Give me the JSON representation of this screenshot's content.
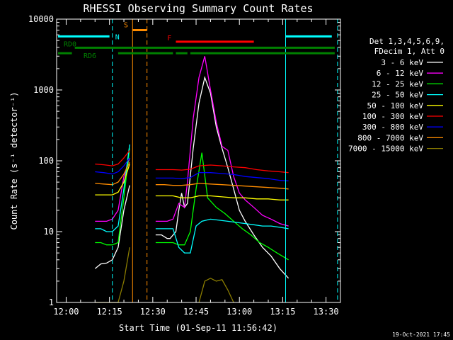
{
  "chart_data": {
    "type": "line",
    "title": "RHESSI Observing Summary Count Rates",
    "xlabel": "Start Time (01-Sep-11 11:56:42)",
    "ylabel": "Count Rate (s⁻¹ detector⁻¹)",
    "y_scale": "log",
    "ylim": [
      1,
      10000
    ],
    "x_ticks": [
      "12:00",
      "12:15",
      "12:30",
      "12:45",
      "13:00",
      "13:15",
      "13:30"
    ],
    "y_ticks": [
      "1",
      "10",
      "100",
      "1000",
      "10000"
    ],
    "legend_placement": "right",
    "legend_header": [
      "Det 1,3,4,5,6,9,",
      "FDecim 1, Att 0"
    ],
    "timestamp": "19-Oct-2021 17:45",
    "series": [
      {
        "name": "3 - 6 keV",
        "color": "#ffffff",
        "points": [
          [
            "12:10",
            3
          ],
          [
            "12:12",
            3.5
          ],
          [
            "12:14",
            3.6
          ],
          [
            "12:16",
            4
          ],
          [
            "12:18",
            6
          ],
          [
            "12:20",
            20
          ],
          [
            "12:22",
            45
          ],
          [
            "12:29",
            null
          ],
          [
            "12:31",
            9
          ],
          [
            "12:33",
            9
          ],
          [
            "12:35",
            8
          ],
          [
            "12:36",
            8
          ],
          [
            "12:38",
            10
          ],
          [
            "12:39",
            20
          ],
          [
            "12:40",
            35
          ],
          [
            "12:41",
            22
          ],
          [
            "12:42",
            25
          ],
          [
            "12:44",
            150
          ],
          [
            "12:46",
            650
          ],
          [
            "12:48",
            1500
          ],
          [
            "12:50",
            900
          ],
          [
            "12:52",
            300
          ],
          [
            "12:54",
            150
          ],
          [
            "12:56",
            80
          ],
          [
            "12:58",
            40
          ],
          [
            "13:00",
            20
          ],
          [
            "13:02",
            14
          ],
          [
            "13:05",
            9
          ],
          [
            "13:08",
            6
          ],
          [
            "13:11",
            4.5
          ],
          [
            "13:14",
            3
          ],
          [
            "13:17",
            2.2
          ]
        ]
      },
      {
        "name": "6 - 12 keV",
        "color": "#ff00ff",
        "points": [
          [
            "12:10",
            14
          ],
          [
            "12:12",
            14
          ],
          [
            "12:14",
            14
          ],
          [
            "12:16",
            15
          ],
          [
            "12:18",
            20
          ],
          [
            "12:20",
            60
          ],
          [
            "12:22",
            110
          ],
          [
            "12:29",
            null
          ],
          [
            "12:31",
            14
          ],
          [
            "12:33",
            14
          ],
          [
            "12:35",
            14
          ],
          [
            "12:37",
            15
          ],
          [
            "12:39",
            25
          ],
          [
            "12:41",
            22
          ],
          [
            "12:42",
            50
          ],
          [
            "12:44",
            400
          ],
          [
            "12:46",
            1500
          ],
          [
            "12:48",
            3000
          ],
          [
            "12:50",
            1000
          ],
          [
            "12:52",
            350
          ],
          [
            "12:54",
            160
          ],
          [
            "12:56",
            140
          ],
          [
            "12:58",
            60
          ],
          [
            "13:00",
            35
          ],
          [
            "13:02",
            28
          ],
          [
            "13:05",
            22
          ],
          [
            "13:08",
            17
          ],
          [
            "13:11",
            15
          ],
          [
            "13:14",
            13
          ],
          [
            "13:17",
            12
          ]
        ]
      },
      {
        "name": "12 - 25 keV",
        "color": "#00ff00",
        "points": [
          [
            "12:10",
            7
          ],
          [
            "12:12",
            7
          ],
          [
            "12:14",
            6.5
          ],
          [
            "12:16",
            6.5
          ],
          [
            "12:18",
            7
          ],
          [
            "12:20",
            30
          ],
          [
            "12:22",
            150
          ],
          [
            "12:29",
            null
          ],
          [
            "12:31",
            7
          ],
          [
            "12:33",
            7
          ],
          [
            "12:35",
            7
          ],
          [
            "12:37",
            7
          ],
          [
            "12:39",
            6.5
          ],
          [
            "12:41",
            6.5
          ],
          [
            "12:43",
            10
          ],
          [
            "12:45",
            40
          ],
          [
            "12:47",
            130
          ],
          [
            "12:49",
            30
          ],
          [
            "12:52",
            22
          ],
          [
            "12:55",
            18
          ],
          [
            "12:58",
            14
          ],
          [
            "13:01",
            11
          ],
          [
            "13:04",
            9
          ],
          [
            "13:07",
            7
          ],
          [
            "13:10",
            6
          ],
          [
            "13:13",
            5
          ],
          [
            "13:17",
            4
          ]
        ]
      },
      {
        "name": "25 - 50 keV",
        "color": "#00ffff",
        "points": [
          [
            "12:10",
            11
          ],
          [
            "12:12",
            11
          ],
          [
            "12:14",
            10
          ],
          [
            "12:16",
            10
          ],
          [
            "12:18",
            12
          ],
          [
            "12:20",
            40
          ],
          [
            "12:22",
            170
          ],
          [
            "12:29",
            null
          ],
          [
            "12:31",
            11
          ],
          [
            "12:33",
            11
          ],
          [
            "12:35",
            11
          ],
          [
            "12:37",
            11
          ],
          [
            "12:39",
            6
          ],
          [
            "12:41",
            5
          ],
          [
            "12:43",
            5
          ],
          [
            "12:45",
            12
          ],
          [
            "12:47",
            14
          ],
          [
            "12:50",
            15
          ],
          [
            "12:53",
            14.5
          ],
          [
            "12:56",
            14
          ],
          [
            "12:59",
            13.5
          ],
          [
            "13:02",
            13
          ],
          [
            "13:05",
            12.5
          ],
          [
            "13:08",
            12
          ],
          [
            "13:11",
            12
          ],
          [
            "13:14",
            11.5
          ],
          [
            "13:17",
            11
          ]
        ]
      },
      {
        "name": "50 - 100 keV",
        "color": "#ffff00",
        "points": [
          [
            "12:10",
            33
          ],
          [
            "12:13",
            33
          ],
          [
            "12:16",
            33
          ],
          [
            "12:18",
            36
          ],
          [
            "12:20",
            50
          ],
          [
            "12:22",
            90
          ],
          [
            "12:29",
            null
          ],
          [
            "12:31",
            32
          ],
          [
            "12:34",
            32
          ],
          [
            "12:37",
            32
          ],
          [
            "12:40",
            30
          ],
          [
            "12:43",
            30
          ],
          [
            "12:46",
            32
          ],
          [
            "12:50",
            32
          ],
          [
            "12:54",
            31
          ],
          [
            "12:58",
            30
          ],
          [
            "13:02",
            30
          ],
          [
            "13:06",
            29
          ],
          [
            "13:10",
            29
          ],
          [
            "13:14",
            28
          ],
          [
            "13:17",
            28
          ]
        ]
      },
      {
        "name": "100 - 300 keV",
        "color": "#ff0000",
        "points": [
          [
            "12:10",
            90
          ],
          [
            "12:13",
            88
          ],
          [
            "12:16",
            85
          ],
          [
            "12:18",
            90
          ],
          [
            "12:20",
            110
          ],
          [
            "12:22",
            140
          ],
          [
            "12:29",
            null
          ],
          [
            "12:31",
            75
          ],
          [
            "12:34",
            75
          ],
          [
            "12:37",
            75
          ],
          [
            "12:40",
            74
          ],
          [
            "12:43",
            76
          ],
          [
            "12:46",
            85
          ],
          [
            "12:50",
            87
          ],
          [
            "12:54",
            85
          ],
          [
            "12:58",
            82
          ],
          [
            "13:02",
            80
          ],
          [
            "13:06",
            75
          ],
          [
            "13:10",
            72
          ],
          [
            "13:14",
            70
          ],
          [
            "13:17",
            68
          ]
        ]
      },
      {
        "name": "300 - 800 keV",
        "color": "#0000ff",
        "points": [
          [
            "12:10",
            70
          ],
          [
            "12:13",
            68
          ],
          [
            "12:16",
            65
          ],
          [
            "12:18",
            70
          ],
          [
            "12:20",
            85
          ],
          [
            "12:22",
            110
          ],
          [
            "12:29",
            null
          ],
          [
            "12:31",
            57
          ],
          [
            "12:34",
            57
          ],
          [
            "12:37",
            57
          ],
          [
            "12:40",
            56
          ],
          [
            "12:43",
            58
          ],
          [
            "12:46",
            68
          ],
          [
            "12:50",
            68
          ],
          [
            "12:54",
            66
          ],
          [
            "12:58",
            64
          ],
          [
            "13:02",
            60
          ],
          [
            "13:06",
            58
          ],
          [
            "13:10",
            56
          ],
          [
            "13:14",
            53
          ],
          [
            "13:17",
            52
          ]
        ]
      },
      {
        "name": "800 - 7000 keV",
        "color": "#ff8c00",
        "points": [
          [
            "12:10",
            48
          ],
          [
            "12:13",
            47
          ],
          [
            "12:16",
            46
          ],
          [
            "12:18",
            50
          ],
          [
            "12:20",
            65
          ],
          [
            "12:22",
            95
          ],
          [
            "12:29",
            null
          ],
          [
            "12:31",
            46
          ],
          [
            "12:34",
            46
          ],
          [
            "12:37",
            45
          ],
          [
            "12:40",
            45
          ],
          [
            "12:43",
            46
          ],
          [
            "12:46",
            48
          ],
          [
            "12:50",
            47
          ],
          [
            "12:54",
            46
          ],
          [
            "12:58",
            45
          ],
          [
            "13:02",
            44
          ],
          [
            "13:06",
            43
          ],
          [
            "13:10",
            42
          ],
          [
            "13:14",
            41
          ],
          [
            "13:17",
            40
          ]
        ]
      },
      {
        "name": "7000 - 15000 keV",
        "color": "#8b7d00",
        "points": [
          [
            "12:10",
            1
          ],
          [
            "12:13",
            1
          ],
          [
            "12:16",
            1
          ],
          [
            "12:18",
            1
          ],
          [
            "12:20",
            2
          ],
          [
            "12:22",
            6
          ],
          [
            "12:29",
            null
          ],
          [
            "12:46",
            1
          ],
          [
            "12:48",
            2
          ],
          [
            "12:50",
            2.2
          ],
          [
            "12:52",
            2
          ],
          [
            "12:54",
            2.1
          ],
          [
            "12:56",
            1.5
          ],
          [
            "12:58",
            1
          ]
        ]
      }
    ],
    "flags": [
      {
        "label": "N",
        "color": "#00ffff",
        "segments": [
          [
            "11:56:42",
            "12:15"
          ],
          [
            "13:16",
            "13:32"
          ]
        ],
        "value": 5700
      },
      {
        "label": "S",
        "color": "#ff8c00",
        "segments": [
          [
            "12:23",
            "12:28"
          ]
        ],
        "value": 7000
      },
      {
        "label": "F",
        "color": "#ff0000",
        "segments": [
          [
            "12:38",
            "13:05"
          ]
        ],
        "value": 4800
      },
      {
        "label": "RD0",
        "color": "#008000",
        "segments": [
          [
            "12:03",
            "13:33"
          ]
        ],
        "value": 3950
      },
      {
        "label": "RD6",
        "color": "#008000",
        "segments": [
          [
            "11:56:42",
            "12:02"
          ],
          [
            "12:18",
            "12:37"
          ],
          [
            "12:38",
            "12:42"
          ],
          [
            "12:43",
            "13:33"
          ]
        ],
        "value": 3300
      }
    ],
    "vlines": [
      {
        "time": "11:56:42",
        "color": "#00ffff",
        "style": "solid"
      },
      {
        "time": "12:16",
        "color": "#00ffff",
        "style": "dashed"
      },
      {
        "time": "12:23",
        "color": "#ff8c00",
        "style": "solid"
      },
      {
        "time": "12:28",
        "color": "#ff8c00",
        "style": "dashed"
      },
      {
        "time": "13:16",
        "color": "#00ffff",
        "style": "solid"
      },
      {
        "time": "13:34",
        "color": "#00ffff",
        "style": "dashed"
      }
    ]
  }
}
